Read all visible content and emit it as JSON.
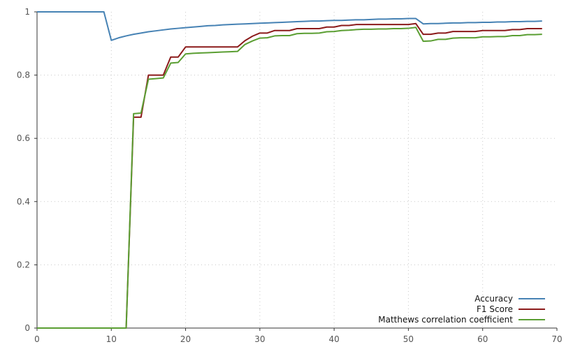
{
  "chart_data": {
    "type": "line",
    "title": "",
    "xlabel": "",
    "ylabel": "",
    "xlim": [
      0,
      70
    ],
    "ylim": [
      0,
      1
    ],
    "x_ticks": [
      0,
      10,
      20,
      30,
      40,
      50,
      60,
      70
    ],
    "x_tick_labels": [
      "0",
      "10",
      "20",
      "30",
      "40",
      "50",
      "60",
      "70"
    ],
    "y_ticks": [
      0,
      0.2,
      0.4,
      0.6,
      0.8,
      1
    ],
    "y_tick_labels": [
      "0",
      "0.2",
      "0.4",
      "0.6",
      "0.8",
      "1"
    ],
    "grid": true,
    "legend_position": "bottom-right",
    "x": [
      0,
      1,
      2,
      3,
      4,
      5,
      6,
      7,
      8,
      9,
      10,
      11,
      12,
      13,
      14,
      15,
      16,
      17,
      18,
      19,
      20,
      21,
      22,
      23,
      24,
      25,
      26,
      27,
      28,
      29,
      30,
      31,
      32,
      33,
      34,
      35,
      36,
      37,
      38,
      39,
      40,
      41,
      42,
      43,
      44,
      45,
      46,
      47,
      48,
      49,
      50,
      51,
      52,
      53,
      54,
      55,
      56,
      57,
      58,
      59,
      60,
      61,
      62,
      63,
      64,
      65,
      66,
      67,
      68
    ],
    "series": [
      {
        "name": "Accuracy",
        "color": "#4682b4",
        "values": [
          1,
          1,
          1,
          1,
          1,
          1,
          1,
          1,
          1,
          1,
          0.91,
          0.918,
          0.924,
          0.929,
          0.933,
          0.937,
          0.94,
          0.943,
          0.946,
          0.948,
          0.95,
          0.952,
          0.954,
          0.956,
          0.957,
          0.959,
          0.96,
          0.961,
          0.962,
          0.963,
          0.964,
          0.965,
          0.966,
          0.967,
          0.968,
          0.969,
          0.97,
          0.971,
          0.971,
          0.972,
          0.973,
          0.973,
          0.974,
          0.975,
          0.975,
          0.976,
          0.977,
          0.977,
          0.978,
          0.978,
          0.979,
          0.979,
          0.962,
          0.963,
          0.963,
          0.964,
          0.965,
          0.965,
          0.966,
          0.966,
          0.967,
          0.967,
          0.968,
          0.968,
          0.969,
          0.969,
          0.97,
          0.97,
          0.971
        ]
      },
      {
        "name": "F1 Score",
        "color": "#8b1a1a",
        "values": [
          0,
          0,
          0,
          0,
          0,
          0,
          0,
          0,
          0,
          0,
          0,
          0,
          0,
          0.667,
          0.667,
          0.8,
          0.8,
          0.8,
          0.857,
          0.857,
          0.889,
          0.889,
          0.889,
          0.889,
          0.889,
          0.889,
          0.889,
          0.889,
          0.909,
          0.923,
          0.933,
          0.933,
          0.941,
          0.941,
          0.941,
          0.947,
          0.947,
          0.947,
          0.947,
          0.952,
          0.952,
          0.957,
          0.957,
          0.96,
          0.96,
          0.96,
          0.96,
          0.96,
          0.96,
          0.96,
          0.96,
          0.963,
          0.929,
          0.929,
          0.933,
          0.933,
          0.938,
          0.938,
          0.938,
          0.938,
          0.941,
          0.941,
          0.941,
          0.941,
          0.944,
          0.944,
          0.947,
          0.947,
          0.947
        ]
      },
      {
        "name": "Matthews correlation coefficient",
        "color": "#5a9e32",
        "values": [
          0,
          0,
          0,
          0,
          0,
          0,
          0,
          0,
          0,
          0,
          0,
          0,
          0,
          0.678,
          0.68,
          0.787,
          0.789,
          0.791,
          0.838,
          0.84,
          0.867,
          0.869,
          0.87,
          0.871,
          0.872,
          0.873,
          0.874,
          0.875,
          0.897,
          0.908,
          0.917,
          0.918,
          0.924,
          0.925,
          0.925,
          0.931,
          0.932,
          0.932,
          0.933,
          0.937,
          0.938,
          0.941,
          0.942,
          0.944,
          0.945,
          0.945,
          0.946,
          0.946,
          0.947,
          0.947,
          0.948,
          0.951,
          0.907,
          0.908,
          0.913,
          0.913,
          0.917,
          0.918,
          0.918,
          0.918,
          0.921,
          0.921,
          0.922,
          0.922,
          0.925,
          0.925,
          0.928,
          0.928,
          0.929
        ]
      }
    ]
  }
}
